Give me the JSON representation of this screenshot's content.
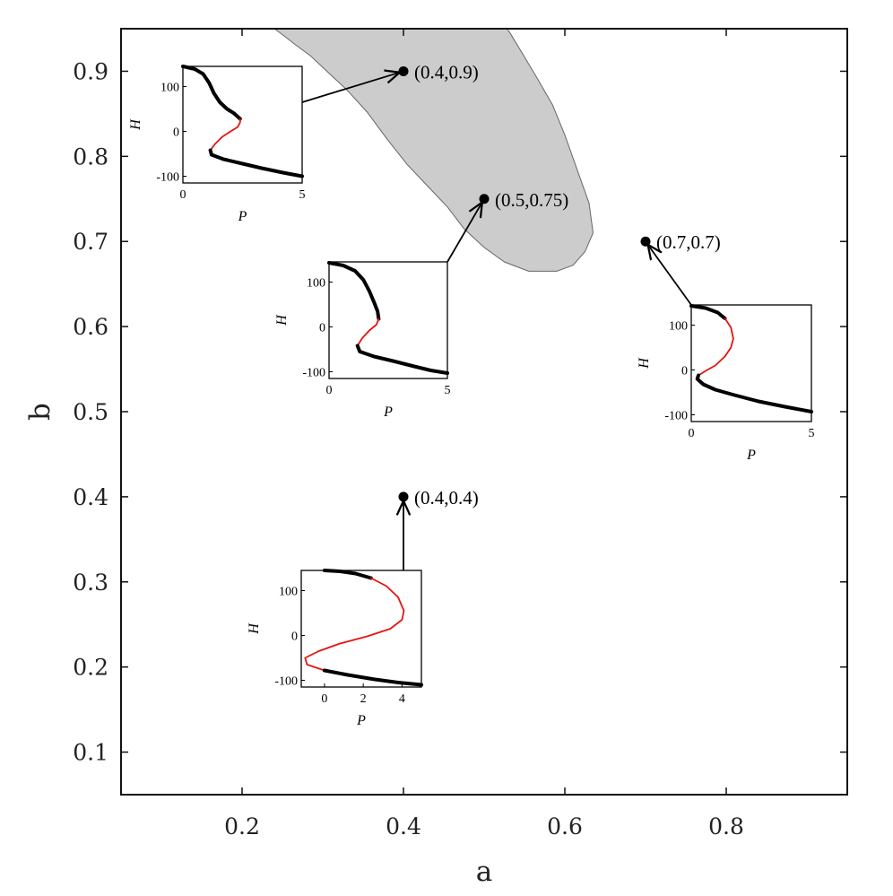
{
  "chart_data": {
    "type": "scatter",
    "xlabel": "a",
    "ylabel": "b",
    "xlim": [
      0.05,
      0.95
    ],
    "ylim": [
      0.05,
      0.95
    ],
    "x_ticks": [
      0.2,
      0.4,
      0.6,
      0.8
    ],
    "x_tick_labels": [
      "0.2",
      "0.4",
      "0.6",
      "0.8"
    ],
    "y_ticks": [
      0.1,
      0.2,
      0.3,
      0.4,
      0.5,
      0.6,
      0.7,
      0.8,
      0.9
    ],
    "y_tick_labels": [
      "0.1",
      "0.2",
      "0.3",
      "0.4",
      "0.5",
      "0.6",
      "0.7",
      "0.8",
      "0.9"
    ],
    "grid": false,
    "region": {
      "fill": "#cccccc",
      "polygon": [
        [
          0.24,
          0.95
        ],
        [
          0.25,
          0.943
        ],
        [
          0.265,
          0.932
        ],
        [
          0.285,
          0.918
        ],
        [
          0.305,
          0.9
        ],
        [
          0.33,
          0.878
        ],
        [
          0.355,
          0.852
        ],
        [
          0.38,
          0.82
        ],
        [
          0.405,
          0.79
        ],
        [
          0.43,
          0.765
        ],
        [
          0.455,
          0.74
        ],
        [
          0.475,
          0.715
        ],
        [
          0.5,
          0.693
        ],
        [
          0.525,
          0.676
        ],
        [
          0.555,
          0.665
        ],
        [
          0.59,
          0.665
        ],
        [
          0.61,
          0.672
        ],
        [
          0.625,
          0.688
        ],
        [
          0.635,
          0.71
        ],
        [
          0.63,
          0.745
        ],
        [
          0.615,
          0.785
        ],
        [
          0.6,
          0.825
        ],
        [
          0.585,
          0.86
        ],
        [
          0.565,
          0.893
        ],
        [
          0.548,
          0.92
        ],
        [
          0.532,
          0.945
        ],
        [
          0.528,
          0.95
        ]
      ]
    },
    "points": [
      {
        "label": "(0.4,0.9)",
        "a": 0.4,
        "b": 0.9
      },
      {
        "label": "(0.5,0.75)",
        "a": 0.5,
        "b": 0.75
      },
      {
        "label": "(0.7,0.7)",
        "a": 0.7,
        "b": 0.7
      },
      {
        "label": "(0.4,0.4)",
        "a": 0.4,
        "b": 0.4
      }
    ],
    "insets": [
      {
        "point": "(0.4,0.9)",
        "xlabel": "P",
        "ylabel": "H",
        "xlim": [
          0,
          5
        ],
        "ylim": [
          -115,
          145
        ],
        "x_ticks": [
          0,
          5
        ],
        "x_tick_labels": [
          "0",
          "5"
        ],
        "y_ticks": [
          -100,
          0,
          100
        ],
        "y_tick_labels": [
          "-100",
          "0",
          "100"
        ],
        "curve": [
          [
            0,
            145
          ],
          [
            0.5,
            139
          ],
          [
            0.85,
            128
          ],
          [
            1.1,
            108
          ],
          [
            1.3,
            85
          ],
          [
            1.55,
            65
          ],
          [
            1.85,
            50
          ],
          [
            2.15,
            40
          ],
          [
            2.4,
            28
          ],
          [
            2.4,
            20
          ],
          [
            2.3,
            10
          ],
          [
            2.0,
            0
          ],
          [
            1.65,
            -12
          ],
          [
            1.35,
            -28
          ],
          [
            1.15,
            -42
          ],
          [
            1.2,
            -52
          ],
          [
            1.7,
            -62
          ],
          [
            2.5,
            -72
          ],
          [
            3.3,
            -82
          ],
          [
            4.2,
            -92
          ],
          [
            5.0,
            -100
          ]
        ],
        "segments": [
          {
            "stability": "stable",
            "color": "#000000",
            "from": [
              0,
              145
            ],
            "to": [
              2.4,
              28
            ]
          },
          {
            "stability": "unstable",
            "color": "#e8130e",
            "from": [
              2.4,
              28
            ],
            "to": [
              1.15,
              -42
            ]
          },
          {
            "stability": "stable",
            "color": "#000000",
            "from": [
              1.15,
              -42
            ],
            "to": [
              5.0,
              -100
            ]
          }
        ]
      },
      {
        "point": "(0.5,0.75)",
        "xlabel": "P",
        "ylabel": "H",
        "xlim": [
          0,
          5
        ],
        "ylim": [
          -115,
          145
        ],
        "x_ticks": [
          0,
          5
        ],
        "x_tick_labels": [
          "0",
          "5"
        ],
        "y_ticks": [
          -100,
          0,
          100
        ],
        "y_tick_labels": [
          "-100",
          "0",
          "100"
        ],
        "curve": [
          [
            0,
            143
          ],
          [
            0.6,
            137
          ],
          [
            1.1,
            125
          ],
          [
            1.45,
            105
          ],
          [
            1.7,
            80
          ],
          [
            1.9,
            55
          ],
          [
            2.05,
            35
          ],
          [
            2.1,
            18
          ],
          [
            2.0,
            5
          ],
          [
            1.7,
            -8
          ],
          [
            1.4,
            -25
          ],
          [
            1.2,
            -42
          ],
          [
            1.3,
            -55
          ],
          [
            1.9,
            -66
          ],
          [
            2.7,
            -76
          ],
          [
            3.6,
            -88
          ],
          [
            4.3,
            -97
          ],
          [
            5.0,
            -103
          ]
        ],
        "segments": [
          {
            "stability": "stable",
            "color": "#000000",
            "from": [
              0,
              143
            ],
            "to": [
              2.1,
              18
            ]
          },
          {
            "stability": "unstable",
            "color": "#e8130e",
            "from": [
              2.1,
              18
            ],
            "to": [
              1.2,
              -42
            ]
          },
          {
            "stability": "stable",
            "color": "#000000",
            "from": [
              1.2,
              -42
            ],
            "to": [
              5.0,
              -103
            ]
          }
        ]
      },
      {
        "point": "(0.7,0.7)",
        "xlabel": "P",
        "ylabel": "H",
        "xlim": [
          0,
          5
        ],
        "ylim": [
          -115,
          145
        ],
        "x_ticks": [
          0,
          5
        ],
        "x_tick_labels": [
          "0",
          "5"
        ],
        "y_ticks": [
          -100,
          0,
          100
        ],
        "y_tick_labels": [
          "-100",
          "0",
          "100"
        ],
        "curve": [
          [
            0,
            143
          ],
          [
            0.6,
            138
          ],
          [
            1.1,
            128
          ],
          [
            1.4,
            115
          ],
          [
            1.65,
            95
          ],
          [
            1.75,
            70
          ],
          [
            1.65,
            50
          ],
          [
            1.4,
            30
          ],
          [
            1.0,
            10
          ],
          [
            0.6,
            -2
          ],
          [
            0.3,
            -12
          ],
          [
            0.25,
            -20
          ],
          [
            0.5,
            -32
          ],
          [
            1.0,
            -44
          ],
          [
            1.8,
            -56
          ],
          [
            2.8,
            -70
          ],
          [
            3.9,
            -82
          ],
          [
            5.0,
            -93
          ]
        ],
        "segments": [
          {
            "stability": "stable",
            "color": "#000000",
            "from": [
              0,
              143
            ],
            "to": [
              1.4,
              115
            ]
          },
          {
            "stability": "unstable",
            "color": "#e8130e",
            "from": [
              1.4,
              115
            ],
            "to": [
              0.3,
              -12
            ]
          },
          {
            "stability": "stable",
            "color": "#000000",
            "from": [
              0.3,
              -12
            ],
            "to": [
              5.0,
              -93
            ]
          }
        ]
      },
      {
        "point": "(0.4,0.4)",
        "xlabel": "P",
        "ylabel": "H",
        "xlim": [
          -1.2,
          5
        ],
        "ylim": [
          -115,
          145
        ],
        "x_ticks": [
          0,
          2,
          4
        ],
        "x_tick_labels": [
          "0",
          "2",
          "4"
        ],
        "y_ticks": [
          -100,
          0,
          100
        ],
        "y_tick_labels": [
          "-100",
          "0",
          "100"
        ],
        "curve": [
          [
            0,
            145
          ],
          [
            0.8,
            143
          ],
          [
            1.6,
            138
          ],
          [
            2.4,
            128
          ],
          [
            3.2,
            110
          ],
          [
            3.8,
            85
          ],
          [
            4.1,
            55
          ],
          [
            4.0,
            35
          ],
          [
            3.4,
            15
          ],
          [
            2.2,
            -2
          ],
          [
            0.8,
            -18
          ],
          [
            -0.3,
            -35
          ],
          [
            -1.0,
            -50
          ],
          [
            -0.9,
            -65
          ],
          [
            0,
            -78
          ],
          [
            1.2,
            -88
          ],
          [
            2.6,
            -98
          ],
          [
            3.8,
            -105
          ],
          [
            5.0,
            -110
          ]
        ],
        "segments": [
          {
            "stability": "stable",
            "color": "#000000",
            "from": [
              0,
              145
            ],
            "to": [
              2.4,
              128
            ]
          },
          {
            "stability": "unstable",
            "color": "#e8130e",
            "from": [
              2.4,
              128
            ],
            "to": [
              0,
              -78
            ]
          },
          {
            "stability": "stable",
            "color": "#000000",
            "from": [
              0,
              -78
            ],
            "to": [
              5.0,
              -110
            ]
          }
        ]
      }
    ]
  }
}
